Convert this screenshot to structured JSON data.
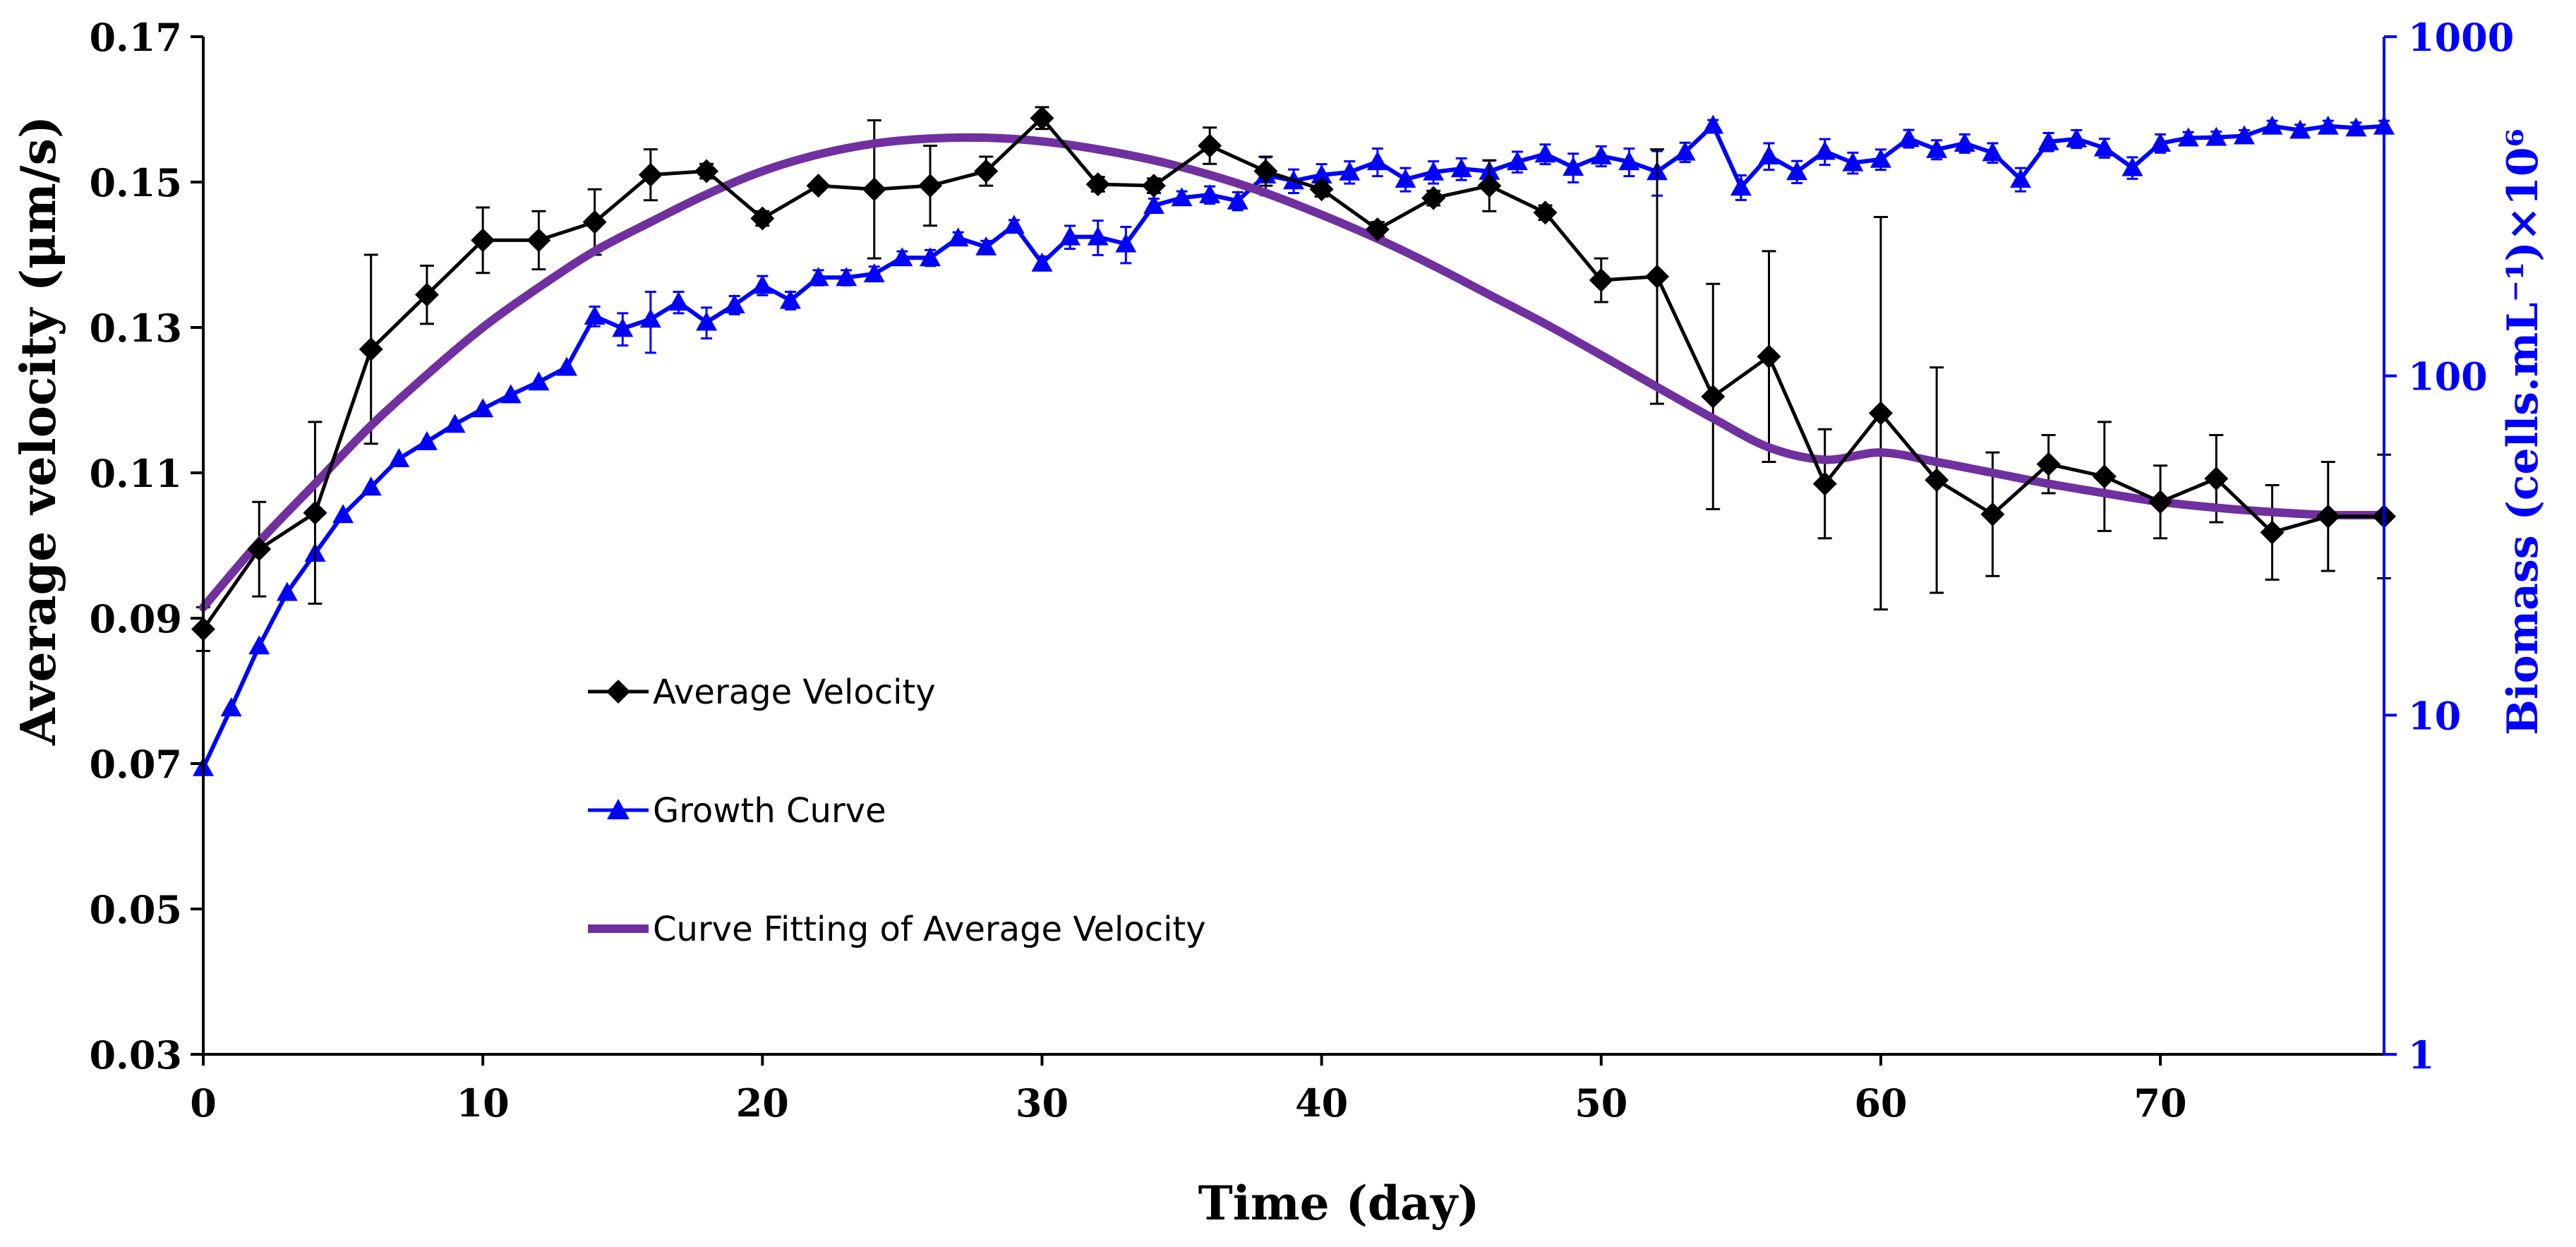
{
  "chart_data": {
    "type": "line",
    "title": "",
    "xlabel": "Time (day)",
    "ylabel_left": "Average velocity (μm/s)",
    "ylabel_right": "Biomass (cells.mL⁻¹)×10⁶",
    "xlim": [
      0,
      78
    ],
    "ylim_left": [
      0.03,
      0.17
    ],
    "ylim_right": [
      1,
      1000
    ],
    "right_scale": "log",
    "x_ticks": [
      "0",
      "10",
      "20",
      "30",
      "40",
      "50",
      "60",
      "70"
    ],
    "y_left_ticks": [
      "0.03",
      "0.05",
      "0.07",
      "0.09",
      "0.11",
      "0.13",
      "0.15",
      "0.17"
    ],
    "y_right_ticks": [
      "1",
      "10",
      "100",
      "1000"
    ],
    "colors": {
      "velocity": "#000000",
      "growth": "#0000ff",
      "fit": "#7030a0",
      "right_axis": "#0000ff"
    },
    "legend_position": "middle-left",
    "series": [
      {
        "name": "Average Velocity",
        "axis": "left",
        "marker": "diamond",
        "x": [
          0,
          2,
          4,
          6,
          8,
          10,
          12,
          14,
          16,
          18,
          20,
          22,
          24,
          26,
          28,
          30,
          32,
          34,
          36,
          38,
          40,
          42,
          44,
          46,
          48,
          50,
          52,
          54,
          56,
          58,
          60,
          62,
          64,
          66,
          68,
          70,
          72,
          74,
          76,
          78
        ],
        "y": [
          0.0885,
          0.0995,
          0.1045,
          0.127,
          0.1345,
          0.142,
          0.142,
          0.1445,
          0.151,
          0.1515,
          0.145,
          0.1495,
          0.149,
          0.1495,
          0.1515,
          0.1588,
          0.1497,
          0.1495,
          0.155,
          0.1515,
          0.149,
          0.1435,
          0.1478,
          0.1495,
          0.1458,
          0.1365,
          0.137,
          0.1205,
          0.126,
          0.1085,
          0.1182,
          0.109,
          0.1043,
          0.1112,
          0.1095,
          0.106,
          0.1092,
          0.1018,
          0.104,
          0.104
        ],
        "err": [
          0.003,
          0.0065,
          0.0125,
          0.013,
          0.004,
          0.0045,
          0.004,
          0.0045,
          0.0035,
          0.001,
          0.001,
          0.0005,
          0.0095,
          0.0055,
          0.002,
          0.0015,
          0.001,
          0.001,
          0.0025,
          0.002,
          0.001,
          0.001,
          0.001,
          0.0035,
          0.001,
          0.003,
          0.0175,
          0.0155,
          0.0145,
          0.0075,
          0.027,
          0.0155,
          0.0085,
          0.004,
          0.0075,
          0.005,
          0.006,
          0.0065,
          0.0075,
          0.0085
        ]
      },
      {
        "name": "Growth Curve",
        "axis": "right",
        "marker": "triangle",
        "x": [
          0,
          1,
          2,
          3,
          4,
          5,
          6,
          7,
          8,
          9,
          10,
          11,
          12,
          13,
          14,
          15,
          16,
          17,
          18,
          19,
          20,
          21,
          22,
          23,
          24,
          25,
          26,
          27,
          28,
          29,
          30,
          31,
          32,
          33,
          34,
          35,
          36,
          37,
          38,
          39,
          40,
          41,
          42,
          43,
          44,
          45,
          46,
          47,
          48,
          49,
          50,
          51,
          52,
          53,
          54,
          55,
          56,
          57,
          58,
          59,
          60,
          61,
          62,
          63,
          64,
          65,
          66,
          67,
          68,
          69,
          70,
          71,
          72,
          73,
          74,
          75,
          76,
          77,
          78
        ],
        "y": [
          7,
          10.5,
          16,
          23,
          30,
          39,
          47,
          57,
          64,
          72,
          80,
          88,
          96,
          106,
          150,
          138,
          147,
          165,
          144,
          162,
          185,
          167,
          195,
          195,
          200,
          223,
          223,
          255,
          240,
          278,
          215,
          257,
          257,
          245,
          318,
          335,
          342,
          328,
          391,
          376,
          391,
          399,
          428,
          380,
          399,
          408,
          401,
          428,
          451,
          412,
          445,
          428,
          400,
          457,
          548,
          360,
          445,
          400,
          459,
          425,
          435,
          501,
          465,
          485,
          455,
          380,
          490,
          500,
          470,
          411,
          485,
          503,
          505,
          510,
          545,
          530,
          545,
          538,
          545
        ],
        "err": [
          0,
          0,
          0,
          0,
          0,
          0,
          0,
          0,
          0,
          0,
          0,
          0,
          0,
          0,
          10,
          15,
          30,
          12,
          15,
          10,
          12,
          10,
          10,
          10,
          10,
          10,
          12,
          10,
          10,
          10,
          10,
          20,
          30,
          30,
          15,
          15,
          20,
          20,
          50,
          30,
          30,
          30,
          40,
          30,
          30,
          30,
          30,
          30,
          30,
          40,
          30,
          40,
          60,
          30,
          20,
          30,
          40,
          30,
          40,
          30,
          30,
          30,
          30,
          30,
          30,
          30,
          30,
          30,
          30,
          30,
          30,
          20,
          20,
          20,
          20,
          20,
          20,
          20,
          20
        ]
      },
      {
        "name": "Curve Fitting of Average Velocity",
        "axis": "left",
        "marker": "none",
        "x": [
          0,
          2,
          4,
          6,
          8,
          10,
          12,
          14,
          16,
          18,
          20,
          22,
          24,
          26,
          28,
          30,
          32,
          34,
          36,
          38,
          40,
          42,
          44,
          46,
          48,
          50,
          52,
          54,
          56,
          58,
          60,
          62,
          64,
          66,
          68,
          70,
          72,
          74,
          76,
          78
        ],
        "y": [
          0.0915,
          0.1005,
          0.1085,
          0.1165,
          0.1235,
          0.13,
          0.1355,
          0.1405,
          0.1445,
          0.1483,
          0.1515,
          0.1538,
          0.1553,
          0.156,
          0.1561,
          0.1556,
          0.1545,
          0.153,
          0.151,
          0.1485,
          0.1455,
          0.1422,
          0.1385,
          0.1345,
          0.1305,
          0.1262,
          0.1218,
          0.1175,
          0.1135,
          0.1118,
          0.1128,
          0.1115,
          0.11,
          0.1085,
          0.1072,
          0.106,
          0.1052,
          0.1046,
          0.1042,
          0.1042
        ]
      }
    ]
  }
}
